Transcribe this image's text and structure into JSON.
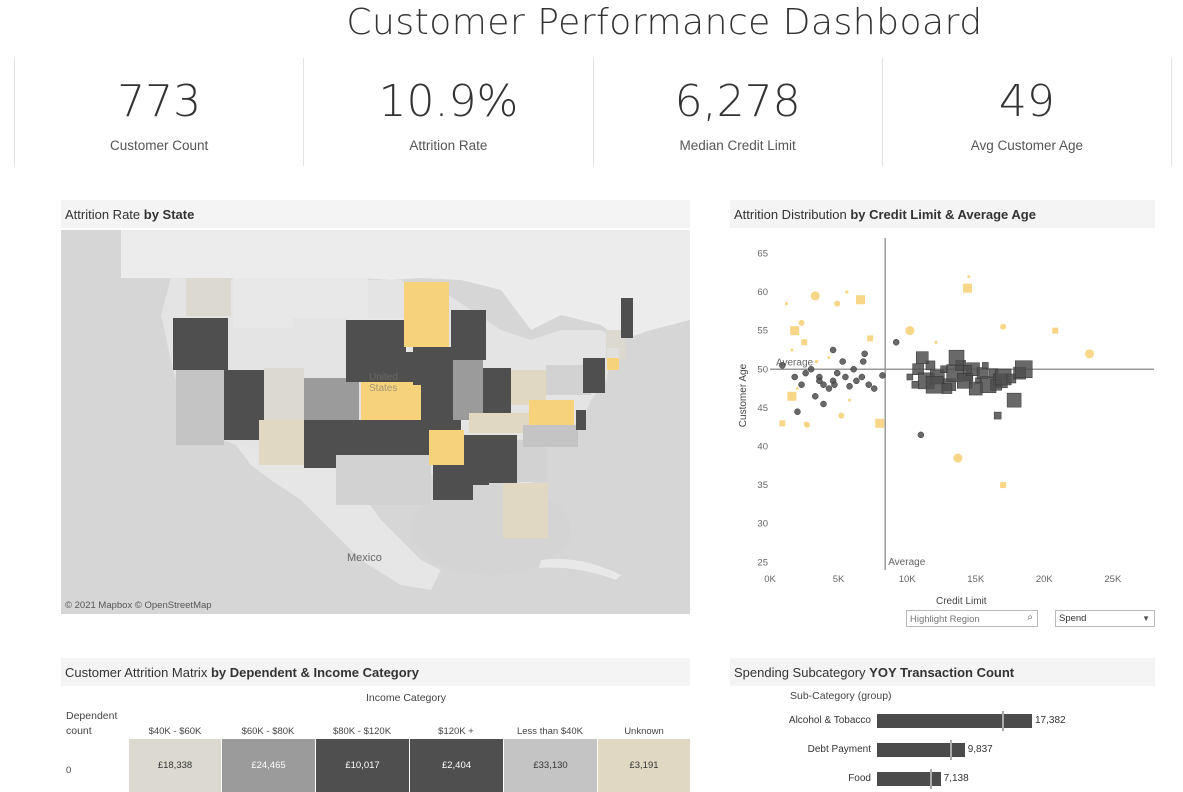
{
  "dashboard": {
    "title": "Customer Performance Dashboard"
  },
  "kpis": [
    {
      "value": "773",
      "label": "Customer Count"
    },
    {
      "value": "10.9%",
      "label": "Attrition Rate"
    },
    {
      "value": "6,278",
      "label": "Median Credit Limit"
    },
    {
      "value": "49",
      "label": "Avg Customer Age"
    }
  ],
  "map_panel": {
    "title_prefix": "Attrition Rate ",
    "title_bold": "by State",
    "labels": {
      "country": "Mexico",
      "us": "United States"
    },
    "credit": "© 2021 Mapbox  © OpenStreetMap"
  },
  "scatter_panel": {
    "title_prefix": "Attrition Distribution ",
    "title_bold": "by Credit Limit & Average Age",
    "y_axis_label": "Customer Age",
    "x_axis_label": "Credit Limit",
    "avg_h_label": "Average",
    "avg_v_label": "Average",
    "highlight_placeholder": "Highlight Region",
    "dropdown_value": "Spend"
  },
  "matrix_panel": {
    "title_prefix": "Customer Attrition Matrix ",
    "title_bold": "by Dependent & Income Category",
    "column_group": "Income Category",
    "row_header_line1": "Dependent",
    "row_header_line2": "count",
    "columns": [
      "$40K - $60K",
      "$60K - $80K",
      "$80K - $120K",
      "$120K +",
      "Less than $40K",
      "Unknown"
    ],
    "rows": [
      {
        "label": "0",
        "cells": [
          "£18,338",
          "£24,465",
          "£10,017",
          "£2,404",
          "£33,130",
          "£3,191"
        ]
      }
    ],
    "cell_colors": [
      "#dcd9d0",
      "#9b9b9b",
      "#4f4f4f",
      "#4f4f4f",
      "#c4c4c4",
      "#e0d8c3"
    ],
    "cell_text_colors": [
      "#333333",
      "#ffffff",
      "#ffffff",
      "#ffffff",
      "#333333",
      "#333333"
    ]
  },
  "bars_panel": {
    "title_prefix": "Spending Subcategory ",
    "title_bold": "YOY Transaction Count",
    "group_header": "Sub-Category (group)",
    "items": [
      {
        "label": "Alcohol & Tobacco",
        "value": 17382,
        "value_label": "17,382",
        "ref": 14000
      },
      {
        "label": "Debt Payment",
        "value": 9837,
        "value_label": "9,837",
        "ref": 8200
      },
      {
        "label": "Food",
        "value": 7138,
        "value_label": "7,138",
        "ref": 5900
      }
    ],
    "max": 17382
  },
  "chart_data": {
    "type": "scatter",
    "xlabel": "Credit Limit",
    "ylabel": "Customer Age",
    "xlim": [
      0,
      28000
    ],
    "ylim": [
      24,
      67
    ],
    "x_ticks": [
      "0K",
      "5K",
      "10K",
      "15K",
      "20K",
      "25K"
    ],
    "y_ticks": [
      "25",
      "30",
      "35",
      "40",
      "45",
      "50",
      "55",
      "60",
      "65"
    ],
    "reference_lines": {
      "avg_x": 8400,
      "avg_y": 50
    },
    "series": [
      {
        "points": [
          [
            900,
            50.5
          ],
          [
            1800,
            49
          ],
          [
            2300,
            48
          ],
          [
            2600,
            49.5
          ],
          [
            3000,
            50
          ],
          [
            3300,
            46.5
          ],
          [
            3600,
            49
          ],
          [
            3900,
            48
          ],
          [
            4300,
            47.5
          ],
          [
            4600,
            48.5
          ],
          [
            4900,
            49.5
          ],
          [
            5500,
            49
          ],
          [
            5800,
            47.8
          ],
          [
            6300,
            48.5
          ],
          [
            6700,
            49
          ],
          [
            7200,
            48
          ],
          [
            7600,
            47.5
          ],
          [
            8200,
            49.2
          ],
          [
            2000,
            44.5
          ],
          [
            3600,
            48.5
          ],
          [
            6800,
            51
          ],
          [
            5300,
            51
          ],
          [
            4600,
            52.5
          ],
          [
            3900,
            45.5
          ],
          [
            4700,
            48
          ],
          [
            9200,
            53.5
          ],
          [
            11000,
            41.5
          ],
          [
            6900,
            52
          ],
          [
            6100,
            50
          ]
        ]
      },
      {
        "points": [
          [
            10200,
            49
          ],
          [
            10800,
            50
          ],
          [
            11400,
            48.5
          ],
          [
            11700,
            50.5
          ],
          [
            12200,
            49
          ],
          [
            12700,
            50
          ],
          [
            13100,
            48
          ],
          [
            13500,
            49.5
          ],
          [
            13900,
            50.5
          ],
          [
            14200,
            48.5
          ],
          [
            14500,
            49
          ],
          [
            14800,
            50
          ],
          [
            15200,
            48.5
          ],
          [
            15500,
            49.5
          ],
          [
            15900,
            48
          ],
          [
            16300,
            49.5
          ],
          [
            16800,
            48.5
          ],
          [
            10600,
            48
          ],
          [
            11100,
            51.5
          ],
          [
            12000,
            48
          ],
          [
            12900,
            47.5
          ],
          [
            13600,
            51.5
          ],
          [
            14400,
            50
          ],
          [
            15000,
            47.5
          ],
          [
            15700,
            50.5
          ],
          [
            16500,
            48
          ],
          [
            17000,
            49
          ],
          [
            17600,
            48.8
          ],
          [
            17800,
            46
          ],
          [
            16600,
            44
          ],
          [
            18200,
            49.5
          ],
          [
            18500,
            50
          ]
        ]
      },
      {
        "points": [
          [
            1200,
            58.5
          ],
          [
            2300,
            56
          ],
          [
            1800,
            55
          ],
          [
            1600,
            52.5
          ],
          [
            2500,
            53.5
          ],
          [
            3300,
            59.5
          ],
          [
            5600,
            60
          ],
          [
            4900,
            58.5
          ],
          [
            6600,
            59
          ],
          [
            4300,
            51.5
          ],
          [
            7300,
            54
          ],
          [
            10200,
            55
          ],
          [
            12100,
            53.5
          ],
          [
            17000,
            55.5
          ],
          [
            14400,
            60.5
          ],
          [
            14500,
            62
          ],
          [
            20800,
            55
          ],
          [
            23300,
            52
          ],
          [
            2600,
            43
          ],
          [
            5200,
            44
          ],
          [
            8000,
            43
          ],
          [
            5800,
            46
          ],
          [
            17000,
            35
          ],
          [
            13700,
            38.5
          ],
          [
            3400,
            51
          ],
          [
            2700,
            42.8
          ],
          [
            1600,
            46.5
          ],
          [
            2000,
            47.5
          ],
          [
            900,
            43
          ]
        ]
      }
    ]
  }
}
